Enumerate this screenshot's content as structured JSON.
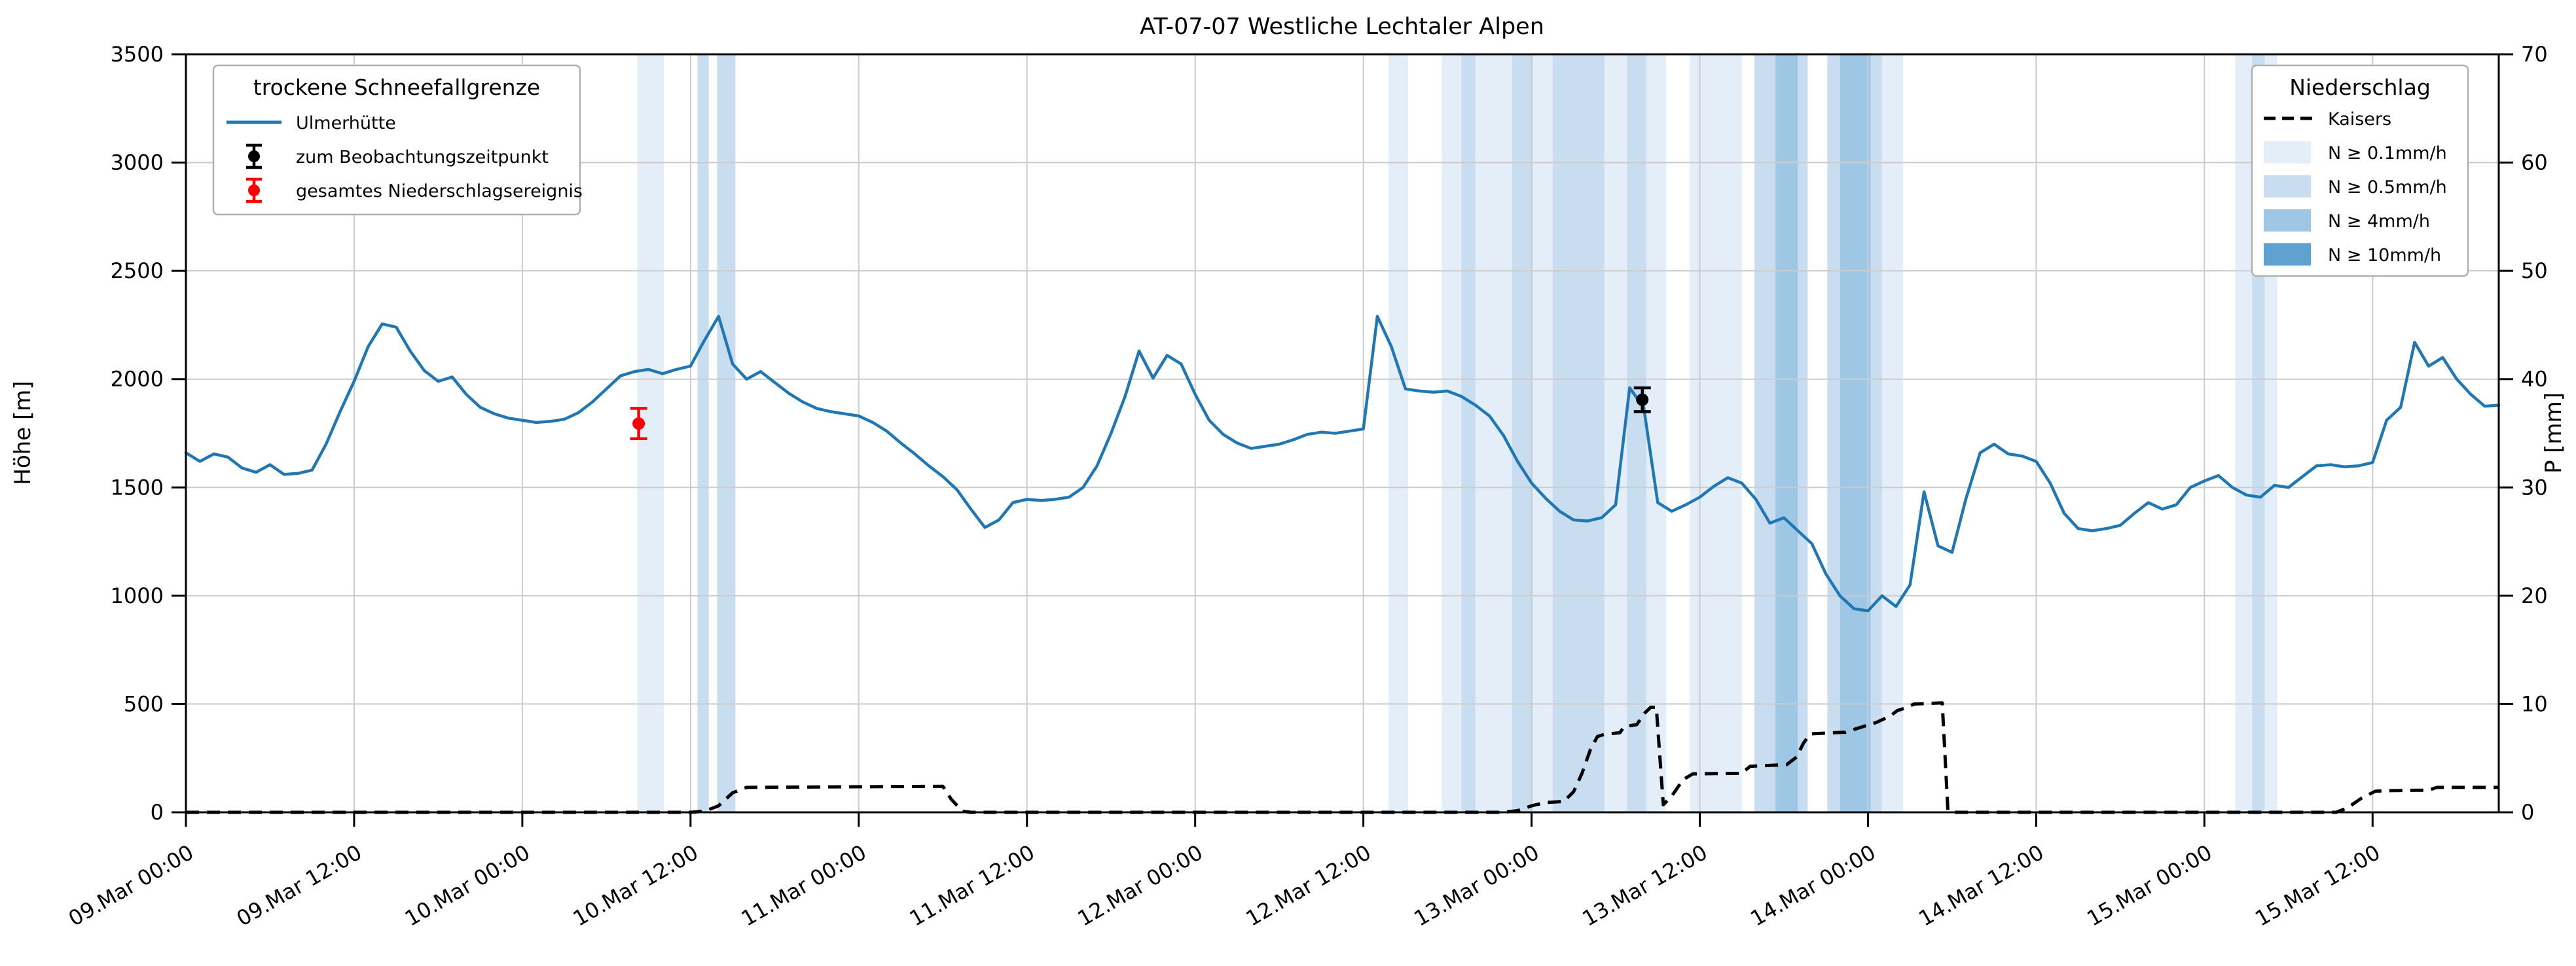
{
  "title": "AT-07-07 Westliche Lechtaler Alpen",
  "axes": {
    "left_label": "Höhe [m]",
    "right_label": "P [mm]",
    "left_ticks": [
      0,
      500,
      1000,
      1500,
      2000,
      2500,
      3000,
      3500
    ],
    "right_ticks": [
      0,
      10,
      20,
      30,
      40,
      50,
      60,
      70
    ],
    "left_range": [
      0,
      3500
    ],
    "right_range": [
      0,
      70
    ],
    "x_range_hours": [
      0,
      165
    ],
    "x_tick_hours": [
      0,
      12,
      24,
      36,
      48,
      60,
      72,
      84,
      96,
      108,
      120,
      132,
      144,
      156
    ],
    "x_tick_labels": [
      "09.Mar 00:00",
      "09.Mar 12:00",
      "10.Mar 00:00",
      "10.Mar 12:00",
      "11.Mar 00:00",
      "11.Mar 12:00",
      "12.Mar 00:00",
      "12.Mar 12:00",
      "13.Mar 00:00",
      "13.Mar 12:00",
      "14.Mar 00:00",
      "14.Mar 12:00",
      "15.Mar 00:00",
      "15.Mar 12:00"
    ]
  },
  "legend_left": {
    "title": "trockene Schneefallgrenze",
    "entries": [
      {
        "label": "Ulmerhütte",
        "type": "line",
        "color": "#1f77b4"
      },
      {
        "label": "zum Beobachtungszeitpunkt",
        "type": "errorbar",
        "color": "#000000"
      },
      {
        "label": "gesamtes Niederschlagsereignis",
        "type": "errorbar",
        "color": "#ff0000"
      }
    ]
  },
  "legend_right": {
    "title": "Niederschlag",
    "entries": [
      {
        "label": "Kaisers",
        "type": "dashed-line",
        "color": "#000000"
      },
      {
        "label": "N ≥ 0.1mm/h",
        "type": "patch",
        "level": 1
      },
      {
        "label": "N ≥ 0.5mm/h",
        "type": "patch",
        "level": 2
      },
      {
        "label": "N ≥ 4mm/h",
        "type": "patch",
        "level": 3
      },
      {
        "label": "N ≥ 10mm/h",
        "type": "patch",
        "level": 4
      }
    ]
  },
  "chart_data": {
    "type": "line",
    "x_unit": "hours since 09.Mar 00:00",
    "x_range_hours": [
      0,
      165
    ],
    "grid": true,
    "band_colors": {
      "1": "#e4eef8",
      "2": "#c9ddf0",
      "3": "#9ec6e5",
      "4": "#5fa2d0"
    },
    "series": [
      {
        "name": "Ulmerhütte",
        "axis": "left",
        "color": "#1f77b4",
        "style": "solid",
        "x_start": 0,
        "x_step": 1,
        "y": [
          1660,
          1620,
          1655,
          1640,
          1590,
          1570,
          1605,
          1560,
          1565,
          1580,
          1700,
          1850,
          1990,
          2150,
          2255,
          2240,
          2130,
          2040,
          1990,
          2010,
          1930,
          1870,
          1840,
          1820,
          1810,
          1800,
          1805,
          1815,
          1845,
          1895,
          1955,
          2015,
          2035,
          2045,
          2025,
          2045,
          2060,
          2180,
          2290,
          2070,
          2000,
          2035,
          1985,
          1935,
          1895,
          1865,
          1850,
          1840,
          1830,
          1800,
          1760,
          1705,
          1655,
          1600,
          1550,
          1490,
          1400,
          1315,
          1350,
          1430,
          1445,
          1440,
          1445,
          1455,
          1500,
          1600,
          1750,
          1920,
          2130,
          2005,
          2110,
          2070,
          1930,
          1810,
          1745,
          1705,
          1680,
          1690,
          1700,
          1720,
          1745,
          1755,
          1750,
          1760,
          1770,
          2290,
          2150,
          1955,
          1945,
          1940,
          1945,
          1920,
          1880,
          1830,
          1740,
          1620,
          1520,
          1450,
          1390,
          1350,
          1345,
          1360,
          1420,
          1960,
          1870,
          1430,
          1390,
          1420,
          1455,
          1505,
          1545,
          1520,
          1445,
          1335,
          1360,
          1300,
          1240,
          1100,
          1000,
          940,
          930,
          1000,
          950,
          1050,
          1480,
          1230,
          1200,
          1450,
          1660,
          1700,
          1655,
          1645,
          1620,
          1520,
          1380,
          1310,
          1300,
          1310,
          1325,
          1380,
          1430,
          1400,
          1420,
          1500,
          1530,
          1555,
          1500,
          1465,
          1455,
          1510,
          1500,
          1550,
          1600,
          1605,
          1595,
          1600,
          1615,
          1810,
          1870,
          2170,
          2060,
          2100,
          2000,
          1930,
          1875,
          1880
        ]
      },
      {
        "name": "Kaisers",
        "axis": "right",
        "color": "#000000",
        "style": "dashed",
        "points": [
          [
            0,
            0
          ],
          [
            36,
            0
          ],
          [
            37,
            0.1
          ],
          [
            38,
            0.6
          ],
          [
            39,
            1.8
          ],
          [
            40,
            2.3
          ],
          [
            46,
            2.35
          ],
          [
            54,
            2.4
          ],
          [
            54.6,
            1.2
          ],
          [
            55.4,
            0.1
          ],
          [
            56,
            0
          ],
          [
            94,
            0
          ],
          [
            95,
            0.15
          ],
          [
            96,
            0.6
          ],
          [
            97,
            0.9
          ],
          [
            98.3,
            1.0
          ],
          [
            99,
            1.9
          ],
          [
            99.6,
            3.6
          ],
          [
            100.2,
            5.8
          ],
          [
            100.7,
            7.0
          ],
          [
            101.2,
            7.2
          ],
          [
            102.3,
            7.35
          ],
          [
            102.6,
            7.9
          ],
          [
            103.5,
            8.1
          ],
          [
            104.1,
            9.2
          ],
          [
            104.5,
            9.7
          ],
          [
            104.9,
            9.7
          ],
          [
            105.4,
            0.7
          ],
          [
            106,
            1.5
          ],
          [
            106.8,
            3.0
          ],
          [
            107.5,
            3.55
          ],
          [
            111,
            3.6
          ],
          [
            111.6,
            4.25
          ],
          [
            114.2,
            4.4
          ],
          [
            114.9,
            5.1
          ],
          [
            115.4,
            6.4
          ],
          [
            115.9,
            7.25
          ],
          [
            118.4,
            7.4
          ],
          [
            119.6,
            7.9
          ],
          [
            120.6,
            8.3
          ],
          [
            121.6,
            8.9
          ],
          [
            122.1,
            9.4
          ],
          [
            122.6,
            9.6
          ],
          [
            123.3,
            10.0
          ],
          [
            125.3,
            10.1
          ],
          [
            125.7,
            0.2
          ],
          [
            126,
            0
          ],
          [
            153.4,
            0
          ],
          [
            154.2,
            0.4
          ],
          [
            155.2,
            1.3
          ],
          [
            156.2,
            1.95
          ],
          [
            157,
            2.0
          ],
          [
            160,
            2.05
          ],
          [
            160.6,
            2.3
          ],
          [
            165,
            2.3
          ]
        ]
      }
    ],
    "markers": [
      {
        "name": "zum Beobachtungszeitpunkt",
        "color": "#000000",
        "x": 103.9,
        "y": 1905,
        "yerr": 55
      },
      {
        "name": "gesamtes Niederschlagsereignis",
        "color": "#ff0000",
        "x": 32.3,
        "y": 1795,
        "yerr": 70
      }
    ],
    "precip_bands": [
      [
        32.2,
        34.1,
        1
      ],
      [
        36.5,
        37.3,
        2
      ],
      [
        37.9,
        39.2,
        2
      ],
      [
        85.8,
        87.2,
        1
      ],
      [
        89.6,
        91.0,
        1
      ],
      [
        91.0,
        92.0,
        2
      ],
      [
        92.0,
        94.6,
        1
      ],
      [
        94.6,
        96.1,
        2
      ],
      [
        96.1,
        97.5,
        1
      ],
      [
        97.5,
        99.1,
        2
      ],
      [
        99.1,
        101.2,
        2
      ],
      [
        101.2,
        102.8,
        1
      ],
      [
        102.8,
        104.2,
        2
      ],
      [
        104.2,
        105.6,
        1
      ],
      [
        107.3,
        111.0,
        1
      ],
      [
        111.9,
        113.4,
        2
      ],
      [
        113.4,
        115.0,
        3
      ],
      [
        115.0,
        115.7,
        2
      ],
      [
        117.1,
        118.0,
        2
      ],
      [
        118.0,
        120.2,
        3
      ],
      [
        120.2,
        121.0,
        2
      ],
      [
        121.0,
        122.5,
        1
      ],
      [
        146.2,
        147.4,
        1
      ],
      [
        147.4,
        148.3,
        2
      ],
      [
        148.3,
        149.2,
        1
      ]
    ]
  }
}
